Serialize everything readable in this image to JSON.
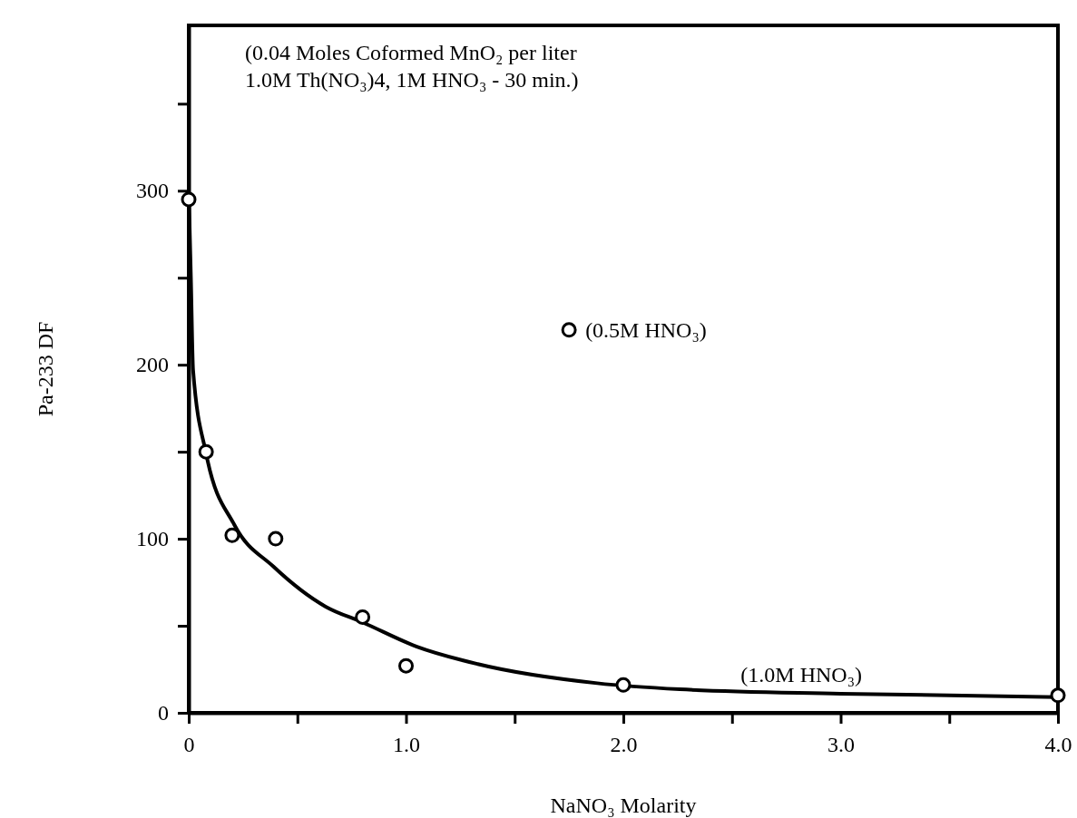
{
  "chart_data": {
    "type": "scatter",
    "xlabel": "NaNO₃ Molarity",
    "ylabel": "Pa-233 DF",
    "annotations": [
      "(0.04 Moles Coformed MnO₂ per liter",
      "1.0M Th(NO₃)4, 1M HNO₃ - 30 min.)",
      {
        "text": "(0.5M HNO₃)",
        "x": 1.75,
        "y": 220
      },
      "(1.0M HNO₃)"
    ],
    "series": [
      {
        "color": "#000000",
        "marker": "circle",
        "x": [
          0,
          0.08,
          0.2,
          0.4,
          0.8,
          1.0,
          2.0,
          1.75,
          4.0
        ],
        "values": [
          295,
          150,
          102,
          100,
          55,
          27,
          16,
          220,
          10
        ]
      },
      {
        "type": "line",
        "color": "#000000",
        "marker": "none",
        "line_style": "solid",
        "x": [
          0,
          0.01,
          0.02,
          0.08,
          0.21,
          0.39,
          0.63,
          0.8,
          1.05,
          1.33,
          1.88,
          2.26,
          3.0,
          4.0
        ],
        "values": [
          300,
          250,
          197,
          149,
          108,
          84,
          61,
          52,
          38,
          28,
          17,
          13.5,
          11,
          9
        ]
      }
    ],
    "xlim": [
      0,
      4
    ],
    "ylim": [
      0,
      395
    ],
    "xticks": [
      0,
      {
        "value": 0.5,
        "label": null
      },
      {
        "value": 1,
        "label": "1.0"
      },
      {
        "value": 1.5,
        "label": null
      },
      {
        "value": 2,
        "label": "2.0"
      },
      {
        "value": 2.5,
        "label": null
      },
      {
        "value": 3,
        "label": "3.0"
      },
      {
        "value": 3.5,
        "label": null
      },
      {
        "value": 4,
        "label": "4.0"
      }
    ],
    "yticks": [
      0,
      {
        "value": 50,
        "label": null
      },
      100,
      {
        "value": 150,
        "label": null
      },
      200,
      {
        "value": 250,
        "label": null
      },
      300,
      {
        "value": 350,
        "label": null
      }
    ],
    "grid": false
  }
}
